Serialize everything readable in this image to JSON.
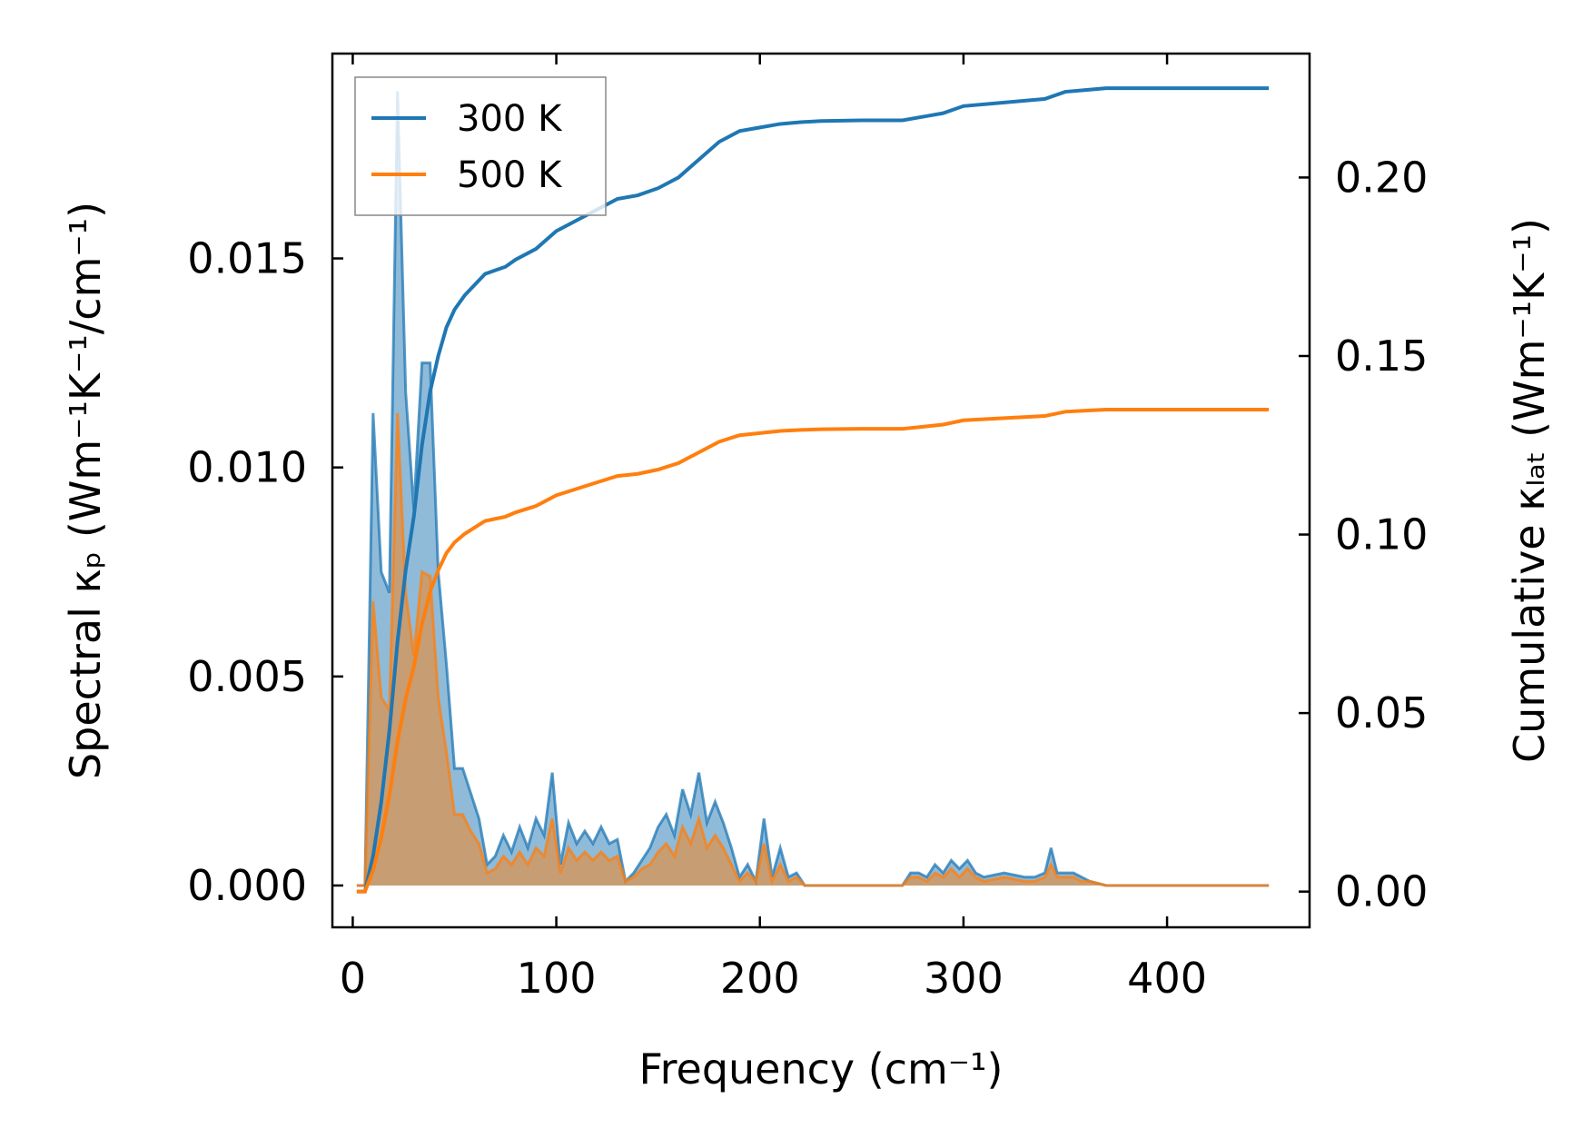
{
  "chart_data": {
    "type": "line",
    "xlabel": "Frequency (cm⁻¹)",
    "ylabel_left": "Spectral κₚ (Wm⁻¹K⁻¹/cm⁻¹)",
    "ylabel_right": "Cumulative κₗₐₜ (Wm⁻¹K⁻¹)",
    "xlim": [
      -10,
      470
    ],
    "ylim_left": [
      -0.001,
      0.0199
    ],
    "ylim_right": [
      -0.01,
      0.2347
    ],
    "x_ticks": [
      0,
      100,
      200,
      300,
      400
    ],
    "x_tick_labels": [
      "0",
      "100",
      "200",
      "300",
      "400"
    ],
    "y_left_ticks": [
      0,
      0.005,
      0.01,
      0.015
    ],
    "y_left_tick_labels": [
      "0.000",
      "0.005",
      "0.010",
      "0.015"
    ],
    "y_right_ticks": [
      0,
      0.05,
      0.1,
      0.15,
      0.2
    ],
    "y_right_tick_labels": [
      "0.00",
      "0.05",
      "0.10",
      "0.15",
      "0.20"
    ],
    "legend": {
      "position": "upper-left",
      "entries": [
        "300 K",
        "500 K"
      ]
    },
    "series": [
      {
        "name": "300 K",
        "color": "#1f77b4",
        "spectral": {
          "x": [
            2,
            6,
            10,
            14,
            18,
            22,
            26,
            30,
            34,
            38,
            42,
            46,
            50,
            54,
            58,
            62,
            66,
            70,
            74,
            78,
            82,
            86,
            90,
            94,
            98,
            102,
            106,
            110,
            114,
            118,
            122,
            126,
            130,
            134,
            138,
            142,
            146,
            150,
            154,
            158,
            162,
            166,
            170,
            174,
            178,
            182,
            186,
            190,
            194,
            198,
            202,
            206,
            210,
            214,
            218,
            222,
            270,
            274,
            278,
            282,
            286,
            290,
            294,
            298,
            302,
            306,
            310,
            320,
            330,
            335,
            340,
            343,
            346,
            350,
            354,
            358,
            362,
            370,
            450
          ],
          "y": [
            0,
            0,
            0.0113,
            0.0075,
            0.007,
            0.019,
            0.0118,
            0.009,
            0.0125,
            0.0125,
            0.0075,
            0.0053,
            0.0028,
            0.0028,
            0.0022,
            0.0016,
            0.0005,
            0.0007,
            0.0012,
            0.0008,
            0.0014,
            0.0009,
            0.0016,
            0.0012,
            0.0027,
            0.0005,
            0.0015,
            0.001,
            0.0013,
            0.001,
            0.0014,
            0.001,
            0.0011,
            0.0001,
            0.0003,
            0.0006,
            0.0009,
            0.0014,
            0.0017,
            0.0012,
            0.0023,
            0.0017,
            0.0027,
            0.0015,
            0.002,
            0.0015,
            0.0009,
            0.0002,
            0.0005,
            0.0001,
            0.0016,
            0.0002,
            0.0009,
            0.0002,
            0.0003,
            0,
            0,
            0.0003,
            0.0003,
            0.0002,
            0.0005,
            0.0003,
            0.0006,
            0.0004,
            0.0006,
            0.0003,
            0.0002,
            0.0003,
            0.0002,
            0.0002,
            0.0003,
            0.0009,
            0.0003,
            0.0003,
            0.0003,
            0.0002,
            0.0001,
            0,
            0
          ]
        },
        "cumulative": {
          "x": [
            2,
            6,
            10,
            14,
            18,
            22,
            26,
            30,
            34,
            38,
            42,
            46,
            50,
            55,
            60,
            65,
            70,
            75,
            80,
            90,
            100,
            110,
            120,
            130,
            140,
            150,
            160,
            170,
            180,
            190,
            200,
            210,
            220,
            230,
            250,
            270,
            280,
            290,
            300,
            320,
            340,
            350,
            360,
            370,
            400,
            450
          ],
          "y": [
            0,
            0,
            0.01,
            0.025,
            0.045,
            0.07,
            0.09,
            0.105,
            0.125,
            0.14,
            0.15,
            0.158,
            0.163,
            0.167,
            0.17,
            0.173,
            0.174,
            0.175,
            0.177,
            0.18,
            0.185,
            0.188,
            0.191,
            0.194,
            0.195,
            0.197,
            0.2,
            0.205,
            0.21,
            0.213,
            0.214,
            0.215,
            0.2155,
            0.2158,
            0.216,
            0.216,
            0.217,
            0.218,
            0.22,
            0.221,
            0.222,
            0.224,
            0.2245,
            0.225,
            0.225,
            0.225
          ]
        }
      },
      {
        "name": "500 K",
        "color": "#ff7f0e",
        "spectral": {
          "x": [
            2,
            6,
            10,
            14,
            18,
            22,
            26,
            30,
            34,
            38,
            42,
            46,
            50,
            54,
            58,
            62,
            66,
            70,
            74,
            78,
            82,
            86,
            90,
            94,
            98,
            102,
            106,
            110,
            114,
            118,
            122,
            126,
            130,
            134,
            138,
            142,
            146,
            150,
            154,
            158,
            162,
            166,
            170,
            174,
            178,
            182,
            186,
            190,
            194,
            198,
            202,
            206,
            210,
            214,
            218,
            222,
            270,
            274,
            278,
            282,
            286,
            290,
            294,
            298,
            302,
            306,
            310,
            320,
            330,
            335,
            340,
            343,
            346,
            350,
            354,
            358,
            362,
            370,
            450
          ],
          "y": [
            0,
            0,
            0.0068,
            0.0045,
            0.0042,
            0.0113,
            0.007,
            0.0055,
            0.0075,
            0.0074,
            0.0045,
            0.0032,
            0.0017,
            0.0017,
            0.0013,
            0.001,
            0.0003,
            0.0004,
            0.0007,
            0.0005,
            0.0008,
            0.0005,
            0.0009,
            0.0007,
            0.0016,
            0.0003,
            0.0009,
            0.0006,
            0.0008,
            0.0006,
            0.0008,
            0.0006,
            0.0007,
            0.0001,
            0.0002,
            0.0004,
            0.0005,
            0.0008,
            0.001,
            0.0007,
            0.0014,
            0.001,
            0.0016,
            0.0009,
            0.0012,
            0.0009,
            0.0005,
            0.0001,
            0.0003,
            0.0001,
            0.001,
            0.0001,
            0.0005,
            0.0001,
            0.0002,
            0,
            0,
            0.0002,
            0.0002,
            0.0001,
            0.0003,
            0.0002,
            0.0004,
            0.0002,
            0.0004,
            0.0002,
            0.0001,
            0.0002,
            0.0001,
            0.0001,
            0.0002,
            0.0005,
            0.0002,
            0.0002,
            0.0002,
            0.0001,
            0.0001,
            0,
            0
          ]
        },
        "cumulative": {
          "x": [
            2,
            6,
            10,
            14,
            18,
            22,
            26,
            30,
            34,
            38,
            42,
            46,
            50,
            55,
            60,
            65,
            70,
            75,
            80,
            90,
            100,
            110,
            120,
            130,
            140,
            150,
            160,
            170,
            180,
            190,
            200,
            210,
            220,
            230,
            250,
            270,
            280,
            290,
            300,
            320,
            340,
            350,
            360,
            370,
            400,
            450
          ],
          "y": [
            0,
            0,
            0.006,
            0.015,
            0.027,
            0.042,
            0.054,
            0.063,
            0.075,
            0.084,
            0.09,
            0.0948,
            0.0978,
            0.1002,
            0.102,
            0.1038,
            0.1044,
            0.105,
            0.1062,
            0.108,
            0.111,
            0.1128,
            0.1146,
            0.1164,
            0.117,
            0.1182,
            0.12,
            0.123,
            0.126,
            0.1278,
            0.1284,
            0.129,
            0.1293,
            0.1295,
            0.1296,
            0.1296,
            0.1302,
            0.1308,
            0.132,
            0.1326,
            0.1332,
            0.1344,
            0.1347,
            0.135,
            0.135,
            0.135
          ]
        }
      }
    ]
  }
}
